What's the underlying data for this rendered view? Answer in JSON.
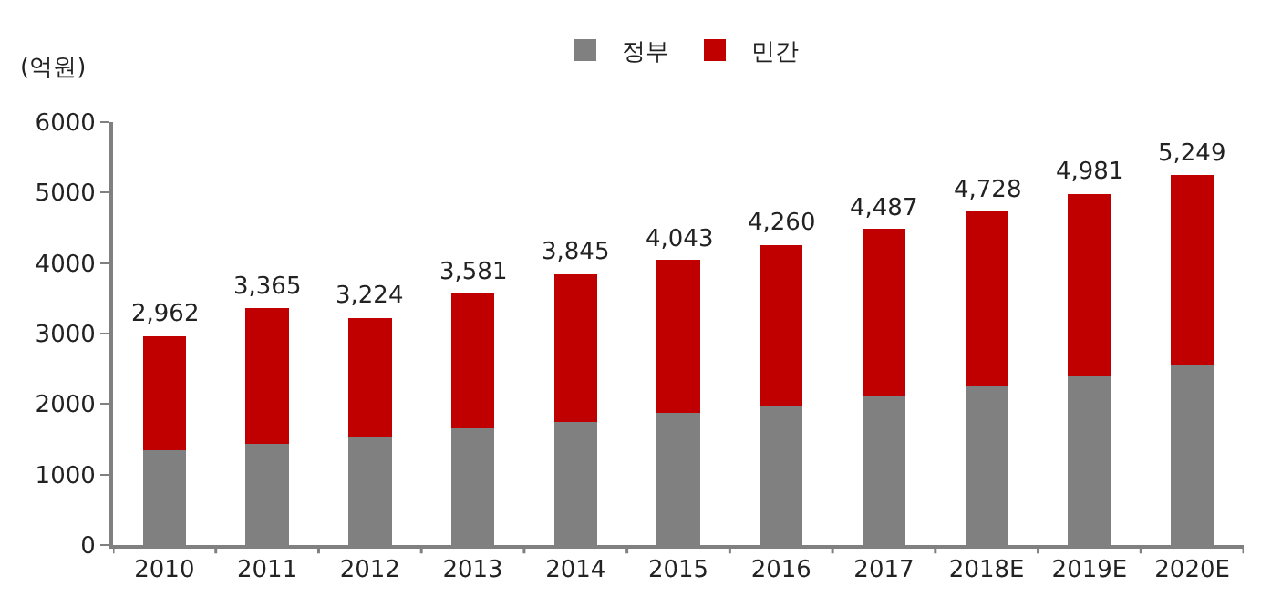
{
  "chart_data": {
    "type": "bar",
    "stacked": true,
    "ylabel": "(억원)",
    "categories": [
      "2010",
      "2011",
      "2012",
      "2013",
      "2014",
      "2015",
      "2016",
      "2017",
      "2018E",
      "2019E",
      "2020E"
    ],
    "series": [
      {
        "name": "정부",
        "color": "#808080",
        "values": [
          1350,
          1430,
          1530,
          1650,
          1750,
          1870,
          1980,
          2110,
          2250,
          2400,
          2550
        ]
      },
      {
        "name": "민간",
        "color": "#c00000",
        "values": [
          1612,
          1935,
          1694,
          1931,
          2095,
          2173,
          2280,
          2377,
          2478,
          2581,
          2699
        ]
      }
    ],
    "totals": [
      "2,962",
      "3,365",
      "3,224",
      "3,581",
      "3,845",
      "4,043",
      "4,260",
      "4,487",
      "4,728",
      "4,981",
      "5,249"
    ],
    "ylim": [
      0,
      6000
    ],
    "yticks": [
      0,
      1000,
      2000,
      3000,
      4000,
      5000,
      6000
    ],
    "legend": "top"
  }
}
